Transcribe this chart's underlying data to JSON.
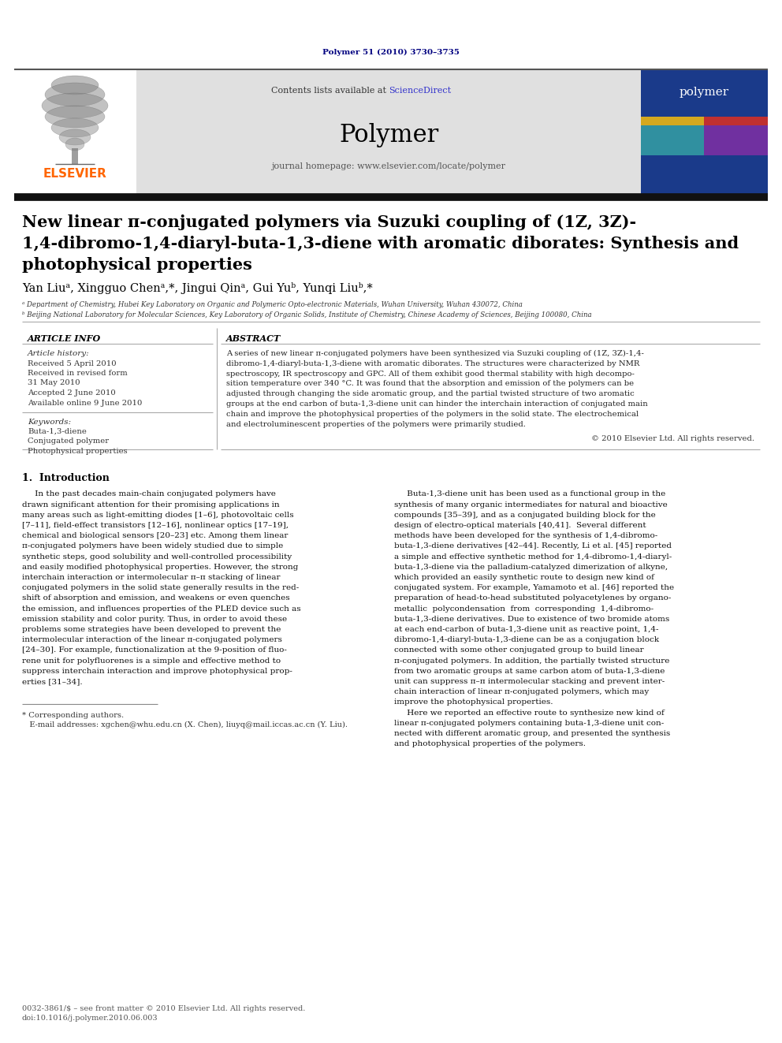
{
  "page_title": "Polymer 51 (2010) 3730–3735",
  "journal_name": "Polymer",
  "journal_homepage": "journal homepage: www.elsevier.com/locate/polymer",
  "contents_available": "Contents lists available at ",
  "science_direct": "ScienceDirect",
  "elsevier_text": "ELSEVIER",
  "article_title_line1": "New linear π-conjugated polymers via Suzuki coupling of (1Z, 3Z)-",
  "article_title_line2": "1,4-dibromo-1,4-diaryl-buta-1,3-diene with aromatic diborates: Synthesis and",
  "article_title_line3": "photophysical properties",
  "authors": "Yan Liuᵃ, Xingguo Chenᵃ,*, Jingui Qinᵃ, Gui Yuᵇ, Yunqi Liuᵇ,*",
  "affil_a": "ᵃ Department of Chemistry, Hubei Key Laboratory on Organic and Polymeric Opto-electronic Materials, Wuhan University, Wuhan 430072, China",
  "affil_b": "ᵇ Beijing National Laboratory for Molecular Sciences, Key Laboratory of Organic Solids, Institute of Chemistry, Chinese Academy of Sciences, Beijing 100080, China",
  "article_info_title": "ARTICLE INFO",
  "article_history_title": "Article history:",
  "received": "Received 5 April 2010",
  "received_revised": "Received in revised form",
  "received_revised2": "31 May 2010",
  "accepted": "Accepted 2 June 2010",
  "available": "Available online 9 June 2010",
  "keywords_title": "Keywords:",
  "keyword1": "Buta-1,3-diene",
  "keyword2": "Conjugated polymer",
  "keyword3": "Photophysical properties",
  "abstract_title": "ABSTRACT",
  "abstract_text": "A series of new linear π-conjugated polymers have been synthesized via Suzuki coupling of (1Z, 3Z)-1,4-dibromo-1,4-diaryl-buta-1,3-diene with aromatic diborates. The structures were characterized by NMR spectroscopy, IR spectroscopy and GPC. All of them exhibit good thermal stability with high decompo-sition temperature over 340 °C. It was found that the absorption and emission of the polymers can be adjusted through changing the side aromatic group, and the partial twisted structure of two aromatic groups at the end carbon of buta-1,3-diene unit can hinder the interchain interaction of conjugated main chain and improve the photophysical properties of the polymers in the solid state. The electrochemical and electroluminescent properties of the polymers were primarily studied.",
  "copyright": "© 2010 Elsevier Ltd. All rights reserved.",
  "intro_title": "1.  Introduction",
  "intro_col1_lines": [
    "     In the past decades main-chain conjugated polymers have",
    "drawn significant attention for their promising applications in",
    "many areas such as light-emitting diodes [1–6], photovoltaic cells",
    "[7–11], field-effect transistors [12–16], nonlinear optics [17–19],",
    "chemical and biological sensors [20–23] etc. Among them linear",
    "π-conjugated polymers have been widely studied due to simple",
    "synthetic steps, good solubility and well-controlled processibility",
    "and easily modified photophysical properties. However, the strong",
    "interchain interaction or intermolecular π–π stacking of linear",
    "conjugated polymers in the solid state generally results in the red-",
    "shift of absorption and emission, and weakens or even quenches",
    "the emission, and influences properties of the PLED device such as",
    "emission stability and color purity. Thus, in order to avoid these",
    "problems some strategies have been developed to prevent the",
    "intermolecular interaction of the linear π-conjugated polymers",
    "[24–30]. For example, functionalization at the 9-position of fluo-",
    "rene unit for polyfluorenes is a simple and effective method to",
    "suppress interchain interaction and improve photophysical prop-",
    "erties [31–34]."
  ],
  "intro_col2_lines": [
    "     Buta-1,3-diene unit has been used as a functional group in the",
    "synthesis of many organic intermediates for natural and bioactive",
    "compounds [35–39], and as a conjugated building block for the",
    "design of electro-optical materials [40,41].  Several different",
    "methods have been developed for the synthesis of 1,4-dibromo-",
    "buta-1,3-diene derivatives [42–44]. Recently, Li et al. [45] reported",
    "a simple and effective synthetic method for 1,4-dibromo-1,4-diaryl-",
    "buta-1,3-diene via the palladium-catalyzed dimerization of alkyne,",
    "which provided an easily synthetic route to design new kind of",
    "conjugated system. For example, Yamamoto et al. [46] reported the",
    "preparation of head-to-head substituted polyacetylenes by organo-",
    "metallic  polycondensation  from  corresponding  1,4-dibromo-",
    "buta-1,3-diene derivatives. Due to existence of two bromide atoms",
    "at each end-carbon of buta-1,3-diene unit as reactive point, 1,4-",
    "dibromo-1,4-diaryl-buta-1,3-diene can be as a conjugation block",
    "connected with some other conjugated group to build linear",
    "π-conjugated polymers. In addition, the partially twisted structure",
    "from two aromatic groups at same carbon atom of buta-1,3-diene",
    "unit can suppress π–π intermolecular stacking and prevent inter-",
    "chain interaction of linear π-conjugated polymers, which may",
    "improve the photophysical properties.",
    "     Here we reported an effective route to synthesize new kind of",
    "linear π-conjugated polymers containing buta-1,3-diene unit con-",
    "nected with different aromatic group, and presented the synthesis",
    "and photophysical properties of the polymers."
  ],
  "footnote_star": "* Corresponding authors.",
  "footnote_email": "   E-mail addresses: xgchen@whu.edu.cn (X. Chen), liuyq@mail.iccas.ac.cn (Y. Liu).",
  "footer_issn": "0032-3861/$ – see front matter © 2010 Elsevier Ltd. All rights reserved.",
  "footer_doi": "doi:10.1016/j.polymer.2010.06.003",
  "bg_color": "#ffffff",
  "header_bg": "#e0e0e0",
  "elsevier_orange": "#FF6600",
  "link_color": "#3333cc",
  "dark_navy": "#000080",
  "polymer_cover_blue": "#1a3a8a",
  "black": "#000000",
  "dark_text": "#111111",
  "gray_text": "#444444"
}
